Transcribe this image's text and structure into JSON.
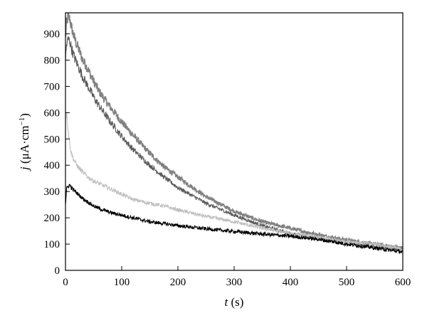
{
  "chart_data": {
    "type": "line",
    "title": "",
    "xlabel": "t (s)",
    "ylabel": "j (μA·cm⁻¹)",
    "xlabel_parts": {
      "var": "t",
      "unit": " (s)"
    },
    "ylabel_parts": {
      "var": "j",
      "unit_pre": " (μA·cm",
      "sup": "−1",
      "unit_post": ")"
    },
    "xlim": [
      0,
      600
    ],
    "ylim": [
      0,
      980
    ],
    "x_ticks": [
      0,
      100,
      200,
      300,
      400,
      500,
      600
    ],
    "y_ticks": [
      0,
      100,
      200,
      300,
      400,
      500,
      600,
      700,
      800,
      900
    ],
    "grid": false,
    "legend": "none",
    "x": [
      0,
      2,
      5,
      8,
      10,
      15,
      20,
      30,
      40,
      50,
      60,
      80,
      100,
      120,
      150,
      175,
      200,
      250,
      300,
      350,
      400,
      450,
      500,
      550,
      600
    ],
    "series": [
      {
        "color": "#808080",
        "values": [
          880,
          945,
          965,
          955,
          930,
          890,
          860,
          805,
          765,
          720,
          680,
          620,
          565,
          515,
          445,
          395,
          355,
          280,
          225,
          185,
          160,
          135,
          115,
          100,
          85
        ]
      },
      {
        "color": "#5a5a5a",
        "values": [
          800,
          860,
          880,
          870,
          850,
          815,
          790,
          740,
          700,
          660,
          625,
          565,
          510,
          460,
          400,
          355,
          315,
          255,
          210,
          170,
          140,
          120,
          105,
          90,
          75
        ]
      },
      {
        "color": "#c0c0c0",
        "values": [
          580,
          600,
          530,
          480,
          450,
          420,
          400,
          375,
          355,
          340,
          330,
          310,
          290,
          270,
          255,
          245,
          230,
          205,
          185,
          160,
          140,
          125,
          110,
          100,
          80
        ]
      },
      {
        "color": "#000000",
        "values": [
          250,
          310,
          320,
          325,
          315,
          305,
          295,
          275,
          260,
          245,
          235,
          220,
          210,
          200,
          185,
          178,
          170,
          158,
          148,
          138,
          130,
          118,
          100,
          85,
          70
        ]
      }
    ]
  }
}
